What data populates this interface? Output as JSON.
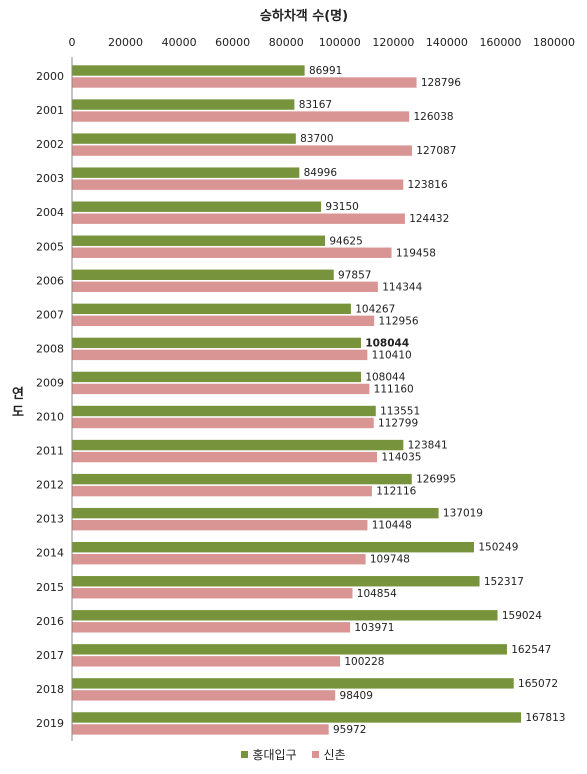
{
  "chart_data": {
    "type": "bar",
    "orientation": "horizontal",
    "title": "승하차객 수(명)",
    "ylabel": "연도",
    "xlim": [
      0,
      180000
    ],
    "xticks": [
      "0",
      "20000",
      "40000",
      "60000",
      "80000",
      "100000",
      "120000",
      "140000",
      "160000",
      "180000"
    ],
    "categories": [
      "2000",
      "2001",
      "2002",
      "2003",
      "2004",
      "2005",
      "2006",
      "2007",
      "2008",
      "2009",
      "2010",
      "2011",
      "2012",
      "2013",
      "2014",
      "2015",
      "2016",
      "2017",
      "2018",
      "2019"
    ],
    "series": [
      {
        "name": "홍대입구",
        "color": "#77933c",
        "values": [
          86991,
          83167,
          83700,
          84996,
          93150,
          94625,
          97857,
          104267,
          108044,
          108044,
          113551,
          123841,
          126995,
          137019,
          150249,
          152317,
          159024,
          162547,
          165072,
          167813
        ]
      },
      {
        "name": "신촌",
        "color": "#d99594",
        "values": [
          128796,
          126038,
          127087,
          123816,
          124432,
          119458,
          114344,
          112956,
          110410,
          111160,
          112799,
          114035,
          112116,
          110448,
          109748,
          104854,
          103971,
          100228,
          98409,
          95972
        ]
      }
    ],
    "legend_position": "bottom",
    "grid": false
  }
}
